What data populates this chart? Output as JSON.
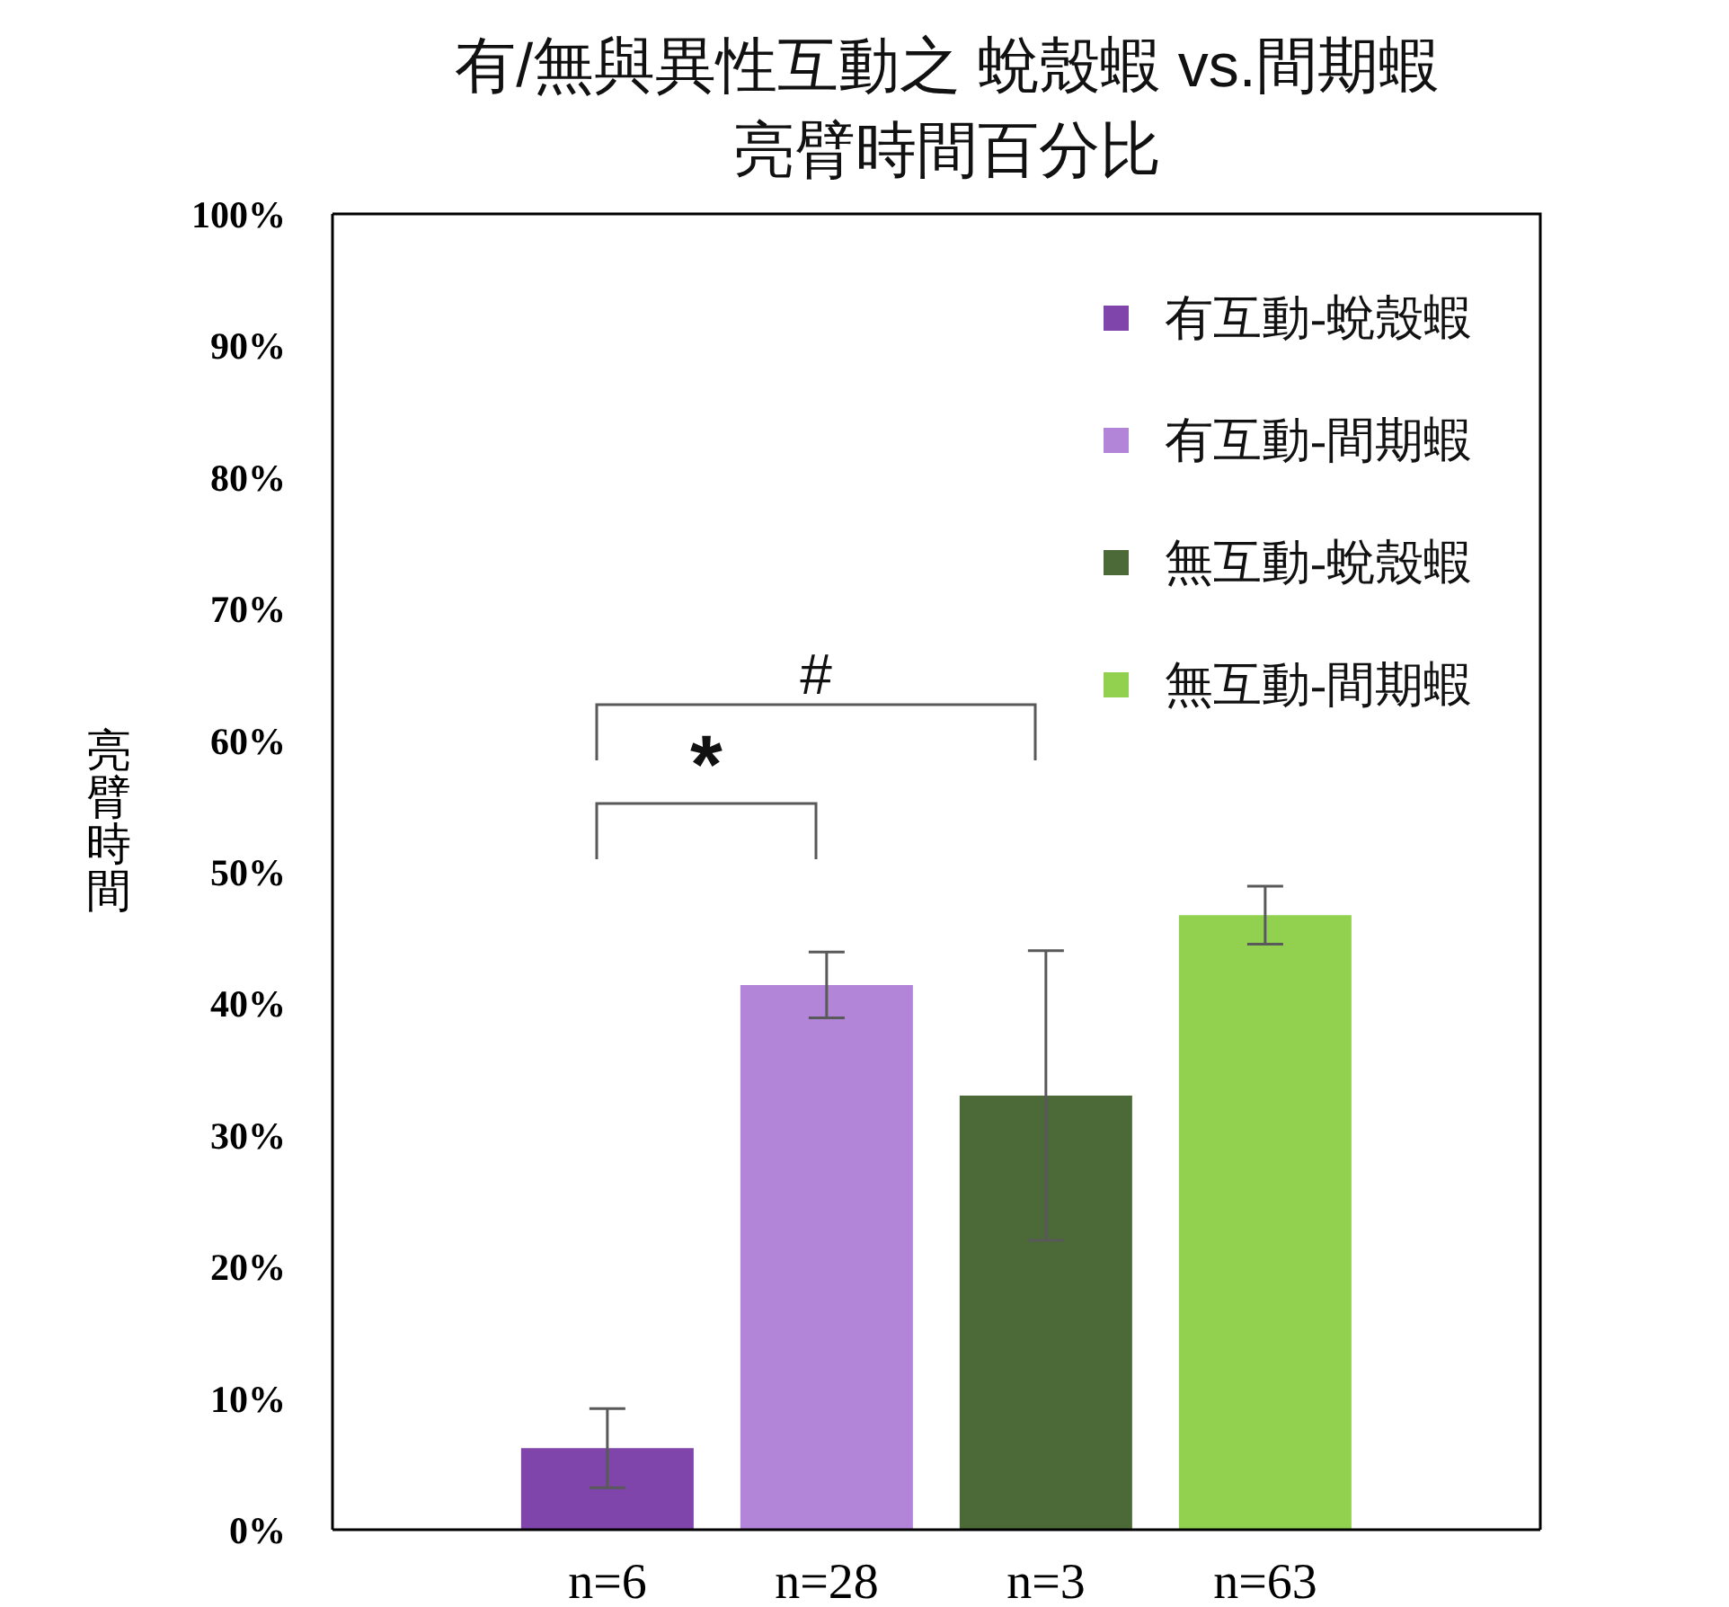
{
  "chart_data": {
    "type": "bar",
    "title": "有/無與異性互動之 蛻殼蝦 vs.間期蝦",
    "subtitle": "亮臂時間百分比",
    "ylabel": "亮臂時間",
    "categories": [
      "n=6",
      "n=28",
      "n=3",
      "n=63"
    ],
    "series": [
      {
        "name": "有互動-蛻殼蝦",
        "color": "#7f45ab",
        "values": [
          6.2,
          null,
          null,
          null
        ],
        "errors": [
          3.0,
          null,
          null,
          null
        ]
      },
      {
        "name": "有互動-間期蝦",
        "color": "#b385d8",
        "values": [
          null,
          41.4,
          null,
          null
        ],
        "errors": [
          null,
          2.5,
          null,
          null
        ]
      },
      {
        "name": "無互動-蛻殼蝦",
        "color": "#4b6a38",
        "values": [
          null,
          null,
          33.0,
          null
        ],
        "errors": [
          null,
          null,
          11.0,
          null
        ]
      },
      {
        "name": "無互動-間期蝦",
        "color": "#92d050",
        "values": [
          null,
          null,
          null,
          46.7
        ],
        "errors": [
          null,
          null,
          null,
          2.2
        ]
      }
    ],
    "ylim": [
      0,
      100
    ],
    "yticks": [
      {
        "value": 0,
        "label": "0%"
      },
      {
        "value": 10,
        "label": "10%"
      },
      {
        "value": 20,
        "label": "20%"
      },
      {
        "value": 30,
        "label": "30%"
      },
      {
        "value": 40,
        "label": "40%"
      },
      {
        "value": 50,
        "label": "50%"
      },
      {
        "value": 60,
        "label": "60%"
      },
      {
        "value": 70,
        "label": "70%"
      },
      {
        "value": 80,
        "label": "80%"
      },
      {
        "value": 90,
        "label": "90%"
      },
      {
        "value": 100,
        "label": "100%"
      }
    ],
    "legend": "top right",
    "annotations": [
      "#",
      "*"
    ]
  }
}
